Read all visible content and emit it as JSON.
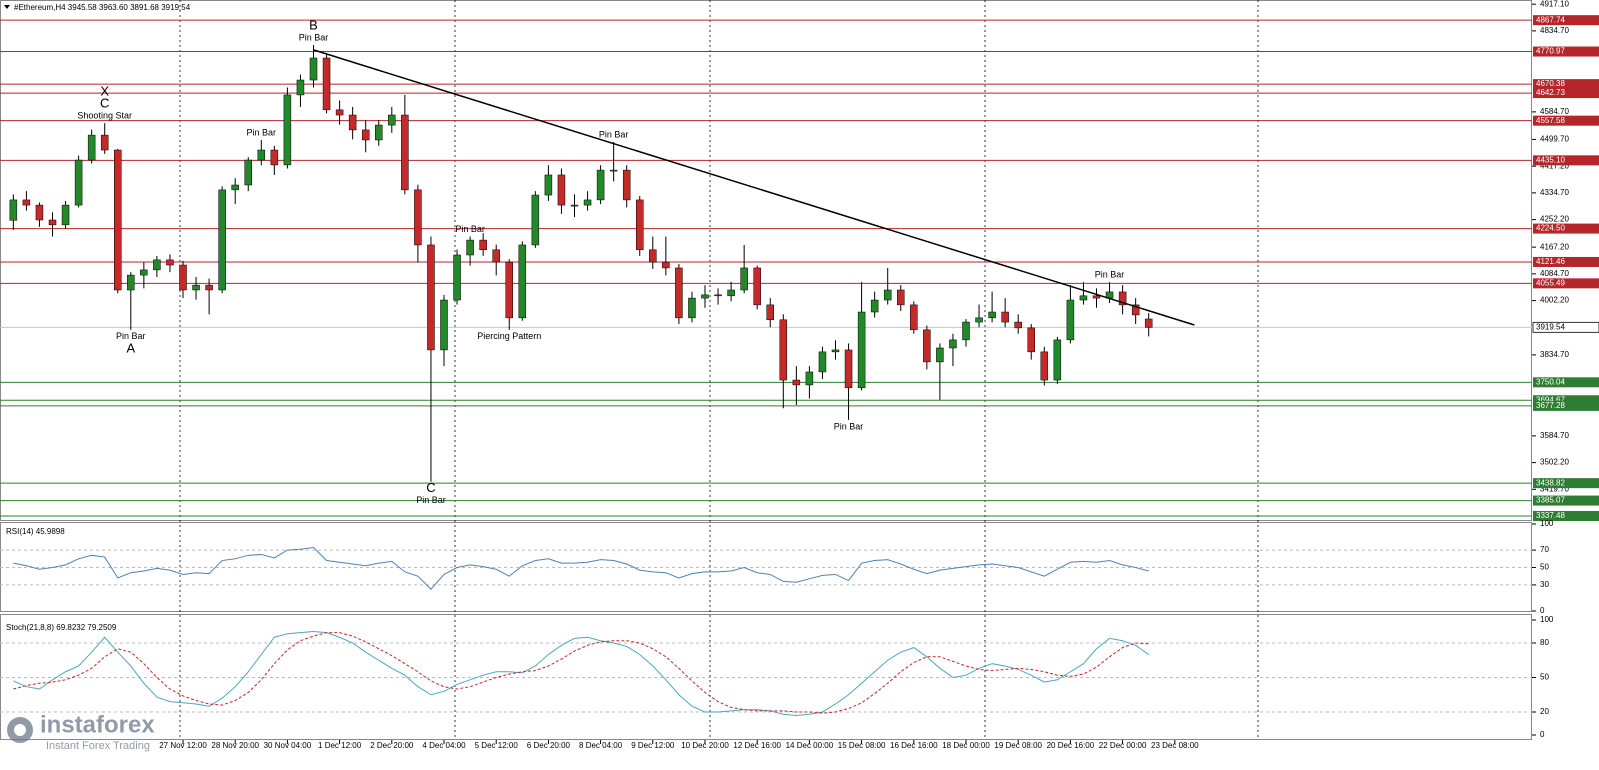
{
  "branding": {
    "name": "instaforex",
    "tagline": "Instant Forex Trading"
  },
  "chart_data": [
    {
      "type": "candlestick",
      "title": "#Ethereum,H4  3945.58 3963.60 3891.68 3919.54",
      "up_color": "#22882a",
      "down_color": "#c42a2a",
      "ylim": [
        3322,
        4930
      ],
      "yticks": [
        {
          "value": 4917.1,
          "label": "4917.10"
        },
        {
          "value": 4834.7,
          "label": "4834.70"
        },
        {
          "value": 4584.7,
          "label": "4584.70"
        },
        {
          "value": 4499.7,
          "label": "4499.70"
        },
        {
          "value": 4417.2,
          "label": "4417.20"
        },
        {
          "value": 4334.7,
          "label": "4334.70"
        },
        {
          "value": 4252.2,
          "label": "4252.20"
        },
        {
          "value": 4167.2,
          "label": "4167.20"
        },
        {
          "value": 4084.7,
          "label": "4084.70"
        },
        {
          "value": 4002.2,
          "label": "4002.20"
        },
        {
          "value": 3834.7,
          "label": "3834.70"
        },
        {
          "value": 3584.7,
          "label": "3584.70"
        },
        {
          "value": 3502.2,
          "label": "3502.20"
        },
        {
          "value": 3419.7,
          "label": "3419.70"
        }
      ],
      "resistance_levels": [
        4867.74,
        4770.97,
        4670.38,
        4642.73,
        4557.58,
        {
          "value": 4435.1,
          "label": "4435.10"
        },
        {
          "value": 4224.5,
          "label": "4224.50"
        },
        4121.46,
        4055.49
      ],
      "resistance_color": "#b5262b",
      "support_levels": [
        3750.04,
        3694.67,
        3677.28,
        3438.82,
        3385.07,
        3337.48
      ],
      "support_color": "#2e7d32",
      "last_price": 3919.54,
      "trendline": {
        "x": [
          23,
          90.5
        ],
        "y": [
          4776,
          3927
        ]
      },
      "categories": [
        null,
        null,
        null,
        null,
        null,
        null,
        null,
        null,
        null,
        null,
        null,
        null,
        null,
        "27 Nov 12:00",
        null,
        null,
        null,
        "28 Nov 20:00",
        null,
        null,
        null,
        "30 Nov 04:00",
        null,
        null,
        null,
        "1 Dec 12:00",
        null,
        null,
        null,
        "2 Dec 20:00",
        null,
        null,
        null,
        "4 Dec 04:00",
        null,
        null,
        null,
        "5 Dec 12:00",
        null,
        null,
        null,
        "6 Dec 20:00",
        null,
        null,
        null,
        "8 Dec 04:00",
        null,
        null,
        null,
        "9 Dec 12:00",
        null,
        null,
        null,
        "10 Dec 20:00",
        null,
        null,
        null,
        "12 Dec 16:00",
        null,
        null,
        null,
        "14 Dec 00:00",
        null,
        null,
        null,
        "15 Dec 08:00",
        null,
        null,
        null,
        "16 Dec 16:00",
        null,
        null,
        null,
        "18 Dec 00:00",
        null,
        null,
        null,
        "19 Dec 08:00",
        null,
        null,
        null,
        "20 Dec 16:00",
        null,
        null,
        null,
        "22 Dec 00:00",
        null,
        null,
        null,
        "23 Dec 08:00"
      ],
      "candles": [
        [
          4250,
          4330,
          4220,
          4313
        ],
        [
          4313,
          4340,
          4280,
          4297
        ],
        [
          4297,
          4305,
          4230,
          4251
        ],
        [
          4251,
          4275,
          4200,
          4236
        ],
        [
          4236,
          4310,
          4225,
          4297
        ],
        [
          4297,
          4450,
          4290,
          4436
        ],
        [
          4436,
          4530,
          4425,
          4513
        ],
        [
          4513,
          4550,
          4455,
          4467
        ],
        [
          4467,
          4470,
          4025,
          4035
        ],
        [
          4035,
          4090,
          3912,
          4081
        ],
        [
          4081,
          4120,
          4040,
          4097
        ],
        [
          4097,
          4140,
          4075,
          4128
        ],
        [
          4128,
          4145,
          4090,
          4112
        ],
        [
          4112,
          4125,
          4010,
          4035
        ],
        [
          4035,
          4075,
          4005,
          4050
        ],
        [
          4050,
          4070,
          3960,
          4035
        ],
        [
          4035,
          4355,
          4025,
          4344
        ],
        [
          4344,
          4380,
          4300,
          4359
        ],
        [
          4359,
          4445,
          4340,
          4436
        ],
        [
          4436,
          4498,
          4420,
          4467
        ],
        [
          4467,
          4480,
          4390,
          4421
        ],
        [
          4421,
          4660,
          4410,
          4637
        ],
        [
          4637,
          4700,
          4600,
          4683
        ],
        [
          4683,
          4791,
          4660,
          4751
        ],
        [
          4751,
          4765,
          4580,
          4591
        ],
        [
          4591,
          4620,
          4545,
          4575
        ],
        [
          4575,
          4600,
          4500,
          4529
        ],
        [
          4529,
          4560,
          4460,
          4498
        ],
        [
          4498,
          4560,
          4480,
          4544
        ],
        [
          4544,
          4600,
          4520,
          4575
        ],
        [
          4575,
          4637,
          4330,
          4344
        ],
        [
          4344,
          4360,
          4120,
          4174
        ],
        [
          4174,
          4200,
          3443,
          3850
        ],
        [
          3850,
          4020,
          3800,
          4004
        ],
        [
          4004,
          4160,
          3990,
          4143
        ],
        [
          4143,
          4200,
          4110,
          4189
        ],
        [
          4189,
          4210,
          4140,
          4159
        ],
        [
          4159,
          4175,
          4080,
          4121
        ],
        [
          4121,
          4130,
          3912,
          3949
        ],
        [
          3949,
          4185,
          3940,
          4174
        ],
        [
          4174,
          4340,
          4165,
          4328
        ],
        [
          4328,
          4420,
          4310,
          4390
        ],
        [
          4390,
          4410,
          4270,
          4297
        ],
        [
          4297,
          4330,
          4260,
          4297
        ],
        [
          4297,
          4340,
          4280,
          4313
        ],
        [
          4313,
          4420,
          4300,
          4405
        ],
        [
          4405,
          4492,
          4370,
          4405
        ],
        [
          4405,
          4420,
          4290,
          4313
        ],
        [
          4313,
          4325,
          4140,
          4159
        ],
        [
          4159,
          4200,
          4100,
          4121
        ],
        [
          4121,
          4200,
          4080,
          4103
        ],
        [
          4103,
          4115,
          3930,
          3949
        ],
        [
          3949,
          4030,
          3935,
          4010
        ],
        [
          4010,
          4050,
          3980,
          4020
        ],
        [
          4020,
          4040,
          3990,
          4017
        ],
        [
          4017,
          4060,
          4000,
          4035
        ],
        [
          4035,
          4174,
          4025,
          4103
        ],
        [
          4103,
          4110,
          3975,
          3989
        ],
        [
          3989,
          4010,
          3920,
          3943
        ],
        [
          3943,
          3960,
          3670,
          3757
        ],
        [
          3757,
          3800,
          3680,
          3742
        ],
        [
          3742,
          3800,
          3700,
          3782
        ],
        [
          3782,
          3860,
          3760,
          3844
        ],
        [
          3844,
          3880,
          3820,
          3850
        ],
        [
          3850,
          3870,
          3634,
          3733
        ],
        [
          3733,
          4060,
          3725,
          3967
        ],
        [
          3967,
          4030,
          3950,
          4004
        ],
        [
          4004,
          4103,
          3990,
          4035
        ],
        [
          4035,
          4050,
          3970,
          3989
        ],
        [
          3989,
          4000,
          3900,
          3912
        ],
        [
          3912,
          3925,
          3790,
          3813
        ],
        [
          3813,
          3870,
          3696,
          3856
        ],
        [
          3856,
          3900,
          3800,
          3881
        ],
        [
          3881,
          3945,
          3860,
          3936
        ],
        [
          3936,
          3990,
          3920,
          3949
        ],
        [
          3949,
          4030,
          3935,
          3967
        ],
        [
          3967,
          4010,
          3920,
          3936
        ],
        [
          3936,
          3960,
          3900,
          3918
        ],
        [
          3918,
          3930,
          3820,
          3844
        ],
        [
          3844,
          3860,
          3740,
          3757
        ],
        [
          3757,
          3890,
          3745,
          3881
        ],
        [
          3881,
          4050,
          3870,
          4004
        ],
        [
          4004,
          4060,
          3990,
          4017
        ],
        [
          4017,
          4040,
          3980,
          4010
        ],
        [
          4010,
          4060,
          3995,
          4029
        ],
        [
          4029,
          4050,
          3960,
          3989
        ],
        [
          3989,
          4010,
          3930,
          3958
        ],
        [
          3945.58,
          3963.6,
          3891.68,
          3919.54
        ],
        null,
        null
      ],
      "annotations": [
        {
          "lines": [
            "X",
            "C",
            "Shooting Star"
          ],
          "candle": 7,
          "side": "above"
        },
        {
          "lines": [
            "B",
            "Pin Bar"
          ],
          "candle": 23,
          "side": "above"
        },
        {
          "lines": [
            "Pin Bar",
            "A"
          ],
          "candle": 9,
          "side": "below"
        },
        {
          "lines": [
            "Pin Bar"
          ],
          "candle": 19,
          "side": "above"
        },
        {
          "lines": [
            "Pin Bar"
          ],
          "candle": 35,
          "side": "above"
        },
        {
          "lines": [
            "Piercing Pattern"
          ],
          "candle": 38,
          "side": "below"
        },
        {
          "lines": [
            "Pin Bar"
          ],
          "candle": 46,
          "side": "above"
        },
        {
          "lines": [
            "C",
            "Pin Bar"
          ],
          "candle": 32,
          "side": "below"
        },
        {
          "lines": [
            "Pin Bar"
          ],
          "candle": 64,
          "side": "below"
        },
        {
          "lines": [
            "Pin Bar"
          ],
          "candle": 84,
          "side": "above"
        }
      ]
    },
    {
      "type": "line",
      "title": "RSI(14) 45.9898",
      "ylim": [
        0,
        100
      ],
      "yticks": [
        0,
        30,
        50,
        70,
        100
      ],
      "series": [
        {
          "color": "#4f81b3",
          "values": [
            55,
            52,
            48,
            50,
            53,
            60,
            64,
            62,
            38,
            44,
            46,
            49,
            47,
            42,
            44,
            43,
            58,
            60,
            64,
            65,
            61,
            70,
            71,
            73,
            58,
            56,
            54,
            52,
            55,
            57,
            45,
            40,
            25,
            42,
            50,
            53,
            51,
            48,
            40,
            52,
            58,
            60,
            55,
            55,
            56,
            59,
            58,
            54,
            47,
            45,
            44,
            38,
            43,
            45,
            45,
            46,
            50,
            44,
            42,
            34,
            33,
            37,
            41,
            42,
            35,
            55,
            58,
            59,
            54,
            48,
            43,
            47,
            49,
            51,
            53,
            54,
            52,
            50,
            45,
            40,
            48,
            56,
            57,
            56,
            58,
            53,
            50,
            45.9898,
            null,
            null
          ]
        }
      ]
    },
    {
      "type": "line",
      "title": "Stoch(21,8,8) 69.8232 79.2509",
      "ylim": [
        0,
        100
      ],
      "yticks": [
        0,
        20,
        50,
        80,
        100
      ],
      "series": [
        {
          "color": "#4ea6bf",
          "values": [
            47,
            42,
            40,
            48,
            55,
            60,
            72,
            85,
            72,
            60,
            45,
            33,
            29,
            28,
            27,
            25,
            32,
            42,
            55,
            70,
            85,
            88,
            89,
            90,
            89,
            85,
            80,
            72,
            65,
            58,
            52,
            42,
            35,
            38,
            44,
            48,
            52,
            55,
            55,
            54,
            60,
            70,
            78,
            84,
            85,
            82,
            80,
            77,
            70,
            60,
            48,
            35,
            25,
            20,
            20,
            21,
            22,
            22,
            21,
            18,
            17,
            18,
            20,
            27,
            35,
            45,
            55,
            65,
            72,
            76,
            68,
            58,
            50,
            52,
            58,
            62,
            60,
            57,
            52,
            46,
            48,
            55,
            62,
            75,
            84,
            82,
            78,
            69.8232,
            null,
            null
          ]
        },
        {
          "color": "#c0282d",
          "dashed": true,
          "values": [
            40,
            43,
            45,
            46,
            48,
            52,
            58,
            68,
            75,
            72,
            62,
            50,
            40,
            34,
            30,
            27,
            26,
            30,
            37,
            48,
            62,
            74,
            82,
            86,
            89,
            89,
            86,
            81,
            75,
            69,
            62,
            55,
            47,
            42,
            40,
            42,
            46,
            50,
            53,
            55,
            56,
            60,
            66,
            73,
            78,
            81,
            82,
            82,
            80,
            75,
            68,
            58,
            47,
            37,
            29,
            24,
            22,
            21,
            21,
            21,
            20,
            20,
            19,
            20,
            23,
            28,
            36,
            45,
            55,
            63,
            68,
            68,
            64,
            60,
            57,
            56,
            57,
            58,
            57,
            55,
            52,
            51,
            53,
            59,
            68,
            76,
            80,
            79.2509,
            null,
            null
          ]
        }
      ]
    }
  ]
}
